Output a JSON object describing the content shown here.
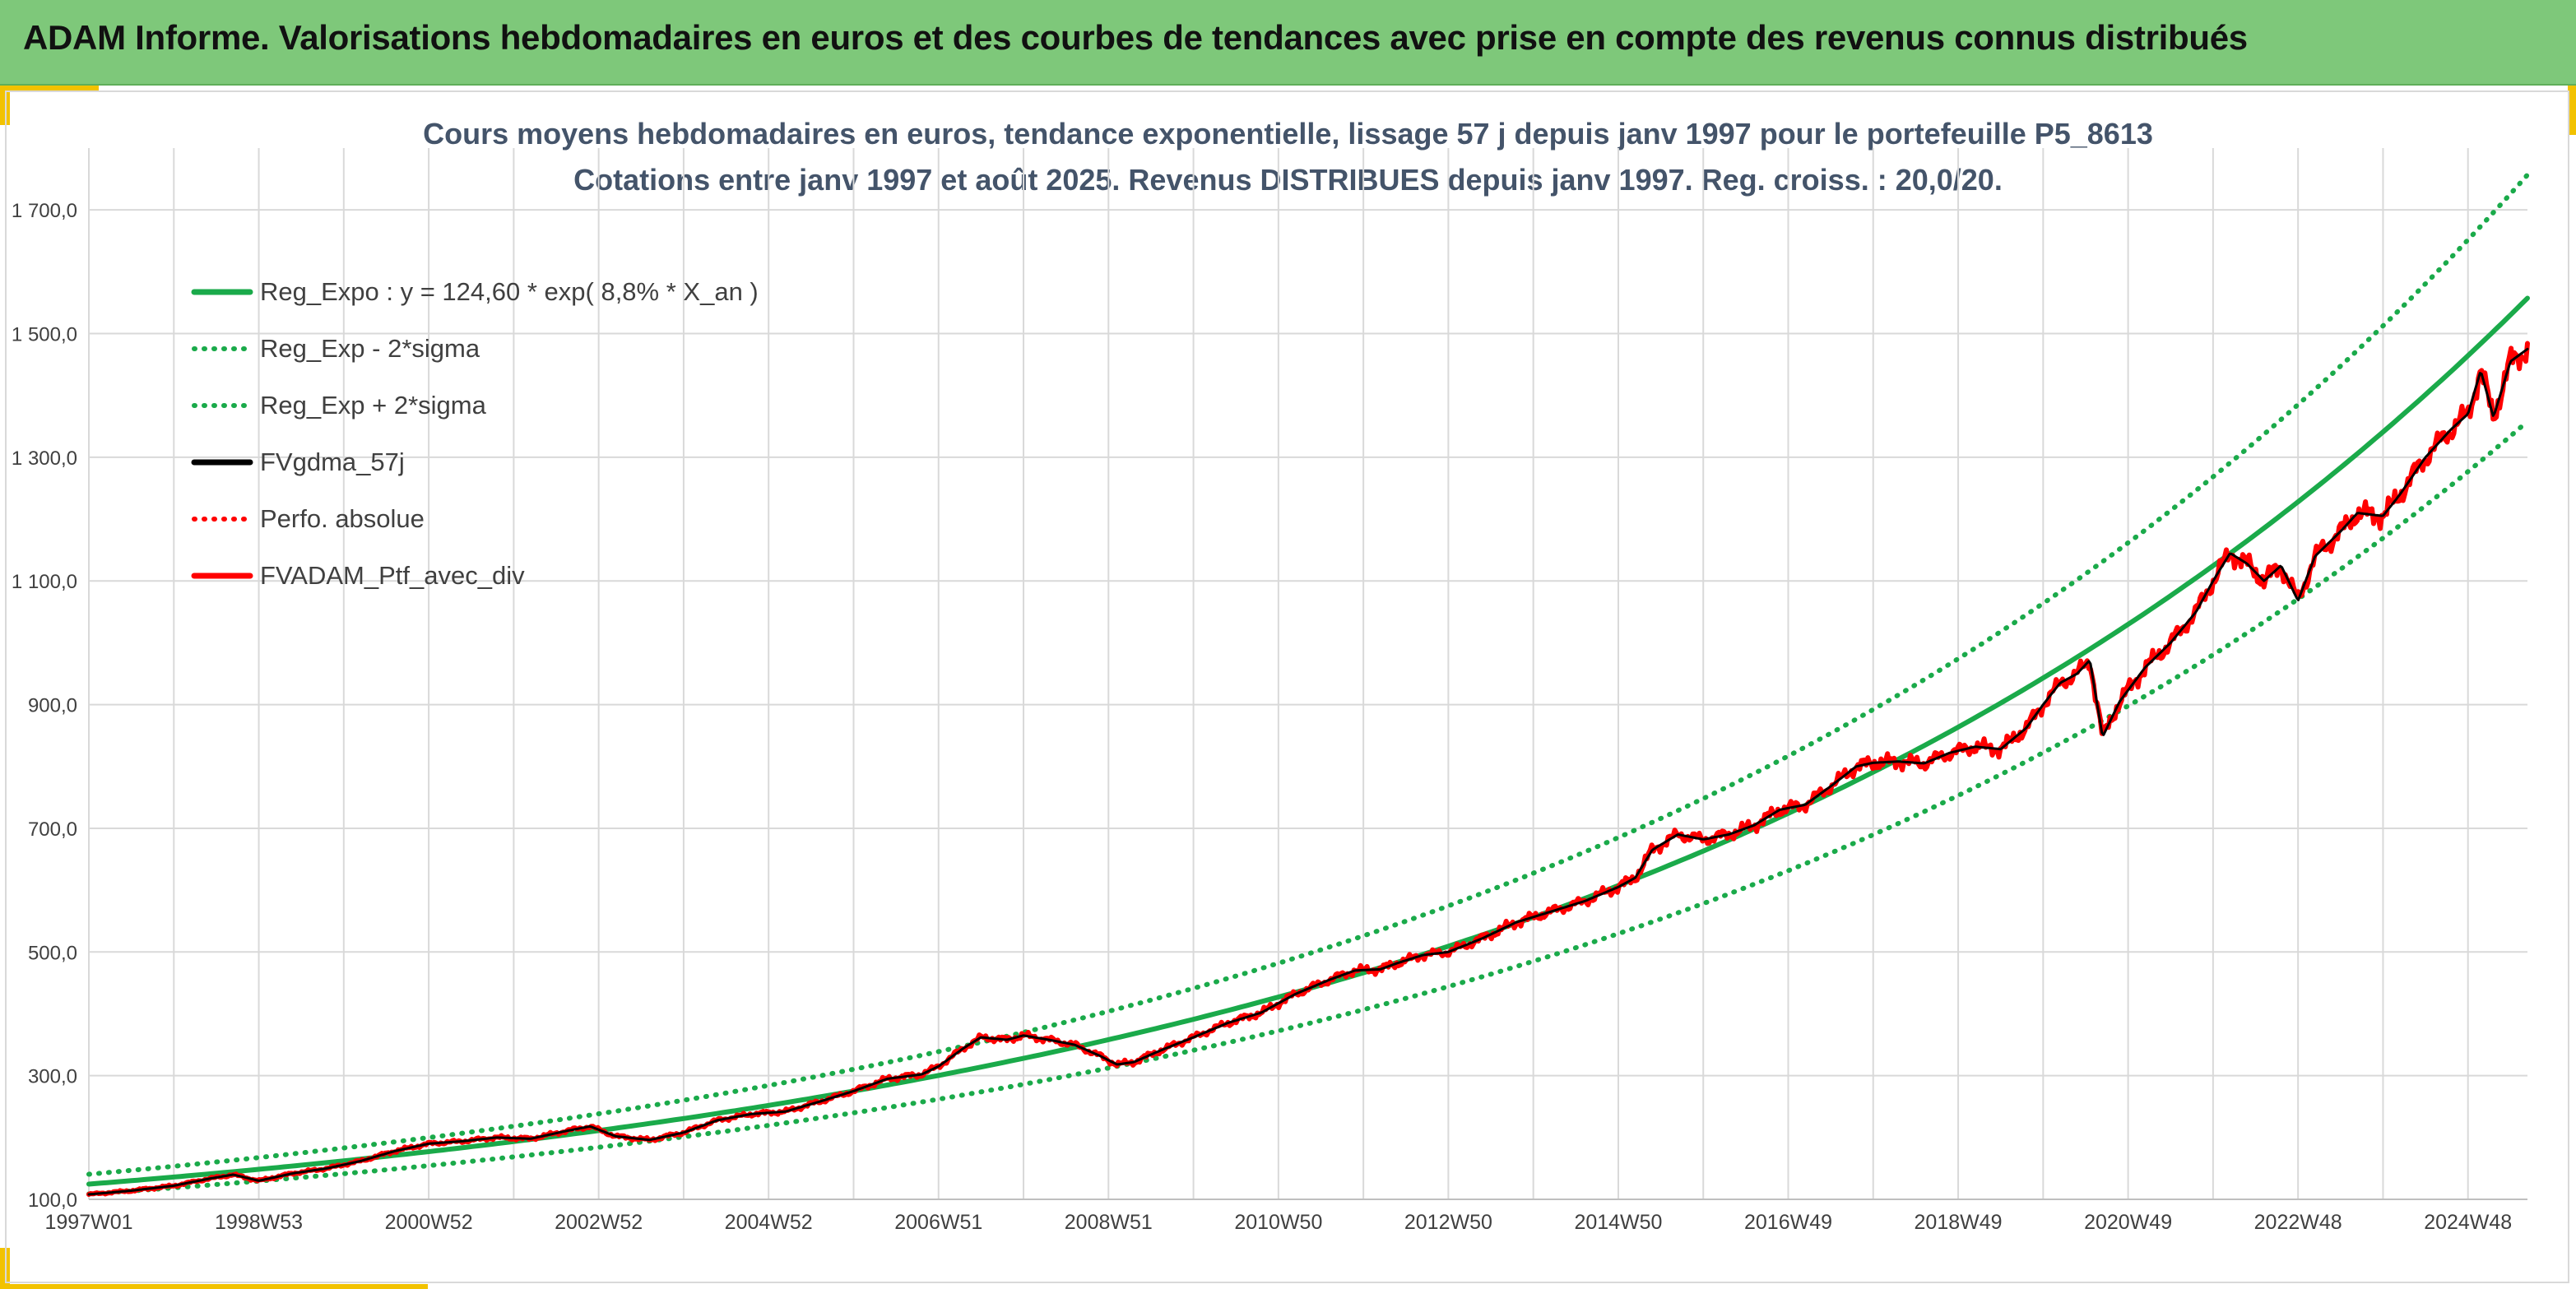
{
  "header": {
    "title": "ADAM Informe. Valorisations hebdomadaires en euros et des courbes de tendances avec prise en compte des revenus connus distribués"
  },
  "colors": {
    "header_bg": "#7ec87a",
    "accent": "#f2c200",
    "title_text": "#44546a",
    "reg_expo": "#1aaa4a",
    "fvgdma": "#000000",
    "fvadam": "#ff0000"
  },
  "chart_data": {
    "type": "line",
    "title": "Cours moyens hebdomadaires en euros, tendance exponentielle, lissage 57 j depuis janv 1997 pour le portefeuille P5_8613",
    "subtitle": "Cotations entre janv 1997 et août 2025. Revenus DISTRIBUES depuis janv 1997. Reg. croiss. : 20,0/20.",
    "xlabel": "",
    "ylabel": "",
    "x_range_years": [
      1997.0,
      2025.7
    ],
    "ylim": [
      100,
      1800
    ],
    "yticks": [
      100,
      300,
      500,
      700,
      900,
      1100,
      1300,
      1500,
      1700
    ],
    "ytick_labels": [
      "100,0",
      "300,0",
      "500,0",
      "700,0",
      "900,0",
      "1 100,0",
      "1 300,0",
      "1 500,0",
      "1 700,0"
    ],
    "xticks": [
      {
        "label": "1997W01",
        "year": 1997.0
      },
      {
        "label": "1998W53",
        "year": 1999.0
      },
      {
        "label": "2000W52",
        "year": 2001.0
      },
      {
        "label": "2002W52",
        "year": 2003.0
      },
      {
        "label": "2004W52",
        "year": 2005.0
      },
      {
        "label": "2006W51",
        "year": 2007.0
      },
      {
        "label": "2008W51",
        "year": 2009.0
      },
      {
        "label": "2010W50",
        "year": 2011.0
      },
      {
        "label": "2012W50",
        "year": 2013.0
      },
      {
        "label": "2014W50",
        "year": 2015.0
      },
      {
        "label": "2016W49",
        "year": 2017.0
      },
      {
        "label": "2018W49",
        "year": 2019.0
      },
      {
        "label": "2020W49",
        "year": 2021.0
      },
      {
        "label": "2022W48",
        "year": 2023.0
      },
      {
        "label": "2024W48",
        "year": 2025.0
      }
    ],
    "grid": true,
    "legend_position": "top-left",
    "regression": {
      "a": 124.6,
      "rate": 0.088,
      "sigma_factor": 0.128
    },
    "series": [
      {
        "name": "Reg_Expo : y = 124,60 * exp( 8,8% *  X_an )",
        "style": "solid",
        "color": "#1aaa4a",
        "kind": "reg"
      },
      {
        "name": "Reg_Exp - 2*sigma",
        "style": "dotted",
        "color": "#1aaa4a",
        "kind": "reg_low"
      },
      {
        "name": "Reg_Exp + 2*sigma",
        "style": "dotted",
        "color": "#1aaa4a",
        "kind": "reg_high"
      },
      {
        "name": "FVgdma_57j",
        "style": "solid",
        "color": "#000000",
        "kind": "smooth"
      },
      {
        "name": "Perfo. absolue",
        "style": "dotted",
        "color": "#ff0000",
        "kind": "none"
      },
      {
        "name": "FVADAM_Ptf_avec_div",
        "style": "solid",
        "color": "#ff0000",
        "kind": "actual"
      }
    ],
    "actual_points": [
      [
        1997.0,
        108
      ],
      [
        1997.5,
        114
      ],
      [
        1998.0,
        122
      ],
      [
        1998.4,
        133
      ],
      [
        1998.7,
        140
      ],
      [
        1999.0,
        130
      ],
      [
        1999.4,
        142
      ],
      [
        1999.8,
        150
      ],
      [
        2000.2,
        162
      ],
      [
        2000.6,
        178
      ],
      [
        2001.0,
        190
      ],
      [
        2001.4,
        194
      ],
      [
        2001.8,
        200
      ],
      [
        2002.2,
        198
      ],
      [
        2002.6,
        210
      ],
      [
        2002.9,
        218
      ],
      [
        2003.2,
        202
      ],
      [
        2003.6,
        196
      ],
      [
        2004.0,
        208
      ],
      [
        2004.4,
        228
      ],
      [
        2004.8,
        238
      ],
      [
        2005.2,
        242
      ],
      [
        2005.6,
        258
      ],
      [
        2006.0,
        275
      ],
      [
        2006.4,
        295
      ],
      [
        2006.8,
        302
      ],
      [
        2007.0,
        315
      ],
      [
        2007.3,
        345
      ],
      [
        2007.5,
        362
      ],
      [
        2007.8,
        358
      ],
      [
        2008.0,
        365
      ],
      [
        2008.3,
        358
      ],
      [
        2008.6,
        350
      ],
      [
        2008.9,
        332
      ],
      [
        2009.1,
        318
      ],
      [
        2009.3,
        322
      ],
      [
        2009.6,
        340
      ],
      [
        2010.0,
        362
      ],
      [
        2010.4,
        385
      ],
      [
        2010.8,
        402
      ],
      [
        2011.2,
        432
      ],
      [
        2011.6,
        455
      ],
      [
        2011.9,
        470
      ],
      [
        2012.2,
        472
      ],
      [
        2012.4,
        482
      ],
      [
        2012.7,
        495
      ],
      [
        2013.0,
        500
      ],
      [
        2013.4,
        522
      ],
      [
        2013.8,
        548
      ],
      [
        2014.2,
        565
      ],
      [
        2014.6,
        582
      ],
      [
        2015.0,
        605
      ],
      [
        2015.2,
        620
      ],
      [
        2015.4,
        665
      ],
      [
        2015.7,
        690
      ],
      [
        2016.0,
        682
      ],
      [
        2016.3,
        690
      ],
      [
        2016.6,
        705
      ],
      [
        2016.9,
        730
      ],
      [
        2017.2,
        738
      ],
      [
        2017.5,
        768
      ],
      [
        2017.8,
        800
      ],
      [
        2018.0,
        806
      ],
      [
        2018.3,
        808
      ],
      [
        2018.6,
        805
      ],
      [
        2018.9,
        822
      ],
      [
        2019.2,
        832
      ],
      [
        2019.5,
        828
      ],
      [
        2019.8,
        862
      ],
      [
        2020.0,
        900
      ],
      [
        2020.2,
        935
      ],
      [
        2020.4,
        950
      ],
      [
        2020.55,
        972
      ],
      [
        2020.7,
        848
      ],
      [
        2020.9,
        905
      ],
      [
        2021.2,
        960
      ],
      [
        2021.5,
        1000
      ],
      [
        2021.8,
        1050
      ],
      [
        2022.0,
        1100
      ],
      [
        2022.2,
        1145
      ],
      [
        2022.4,
        1128
      ],
      [
        2022.6,
        1100
      ],
      [
        2022.8,
        1125
      ],
      [
        2023.0,
        1068
      ],
      [
        2023.2,
        1140
      ],
      [
        2023.5,
        1180
      ],
      [
        2023.7,
        1210
      ],
      [
        2024.0,
        1205
      ],
      [
        2024.2,
        1240
      ],
      [
        2024.5,
        1300
      ],
      [
        2024.8,
        1345
      ],
      [
        2025.0,
        1370
      ],
      [
        2025.15,
        1440
      ],
      [
        2025.3,
        1365
      ],
      [
        2025.5,
        1455
      ],
      [
        2025.7,
        1475
      ]
    ]
  }
}
